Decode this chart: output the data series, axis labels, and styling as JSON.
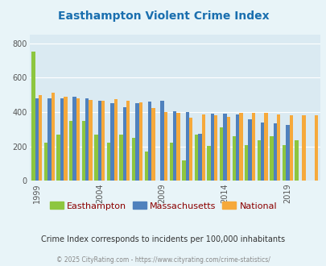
{
  "title": "Easthampton Violent Crime Index",
  "subtitle": "Crime Index corresponds to incidents per 100,000 inhabitants",
  "footer": "© 2025 CityRating.com - https://www.cityrating.com/crime-statistics/",
  "years": [
    1999,
    2000,
    2001,
    2002,
    2003,
    2004,
    2005,
    2006,
    2007,
    2008,
    2009,
    2010,
    2011,
    2012,
    2013,
    2014,
    2015,
    2016,
    2017,
    2018,
    2019,
    2020,
    2021
  ],
  "easthampton": [
    750,
    220,
    270,
    350,
    350,
    270,
    220,
    270,
    250,
    170,
    0,
    220,
    120,
    270,
    205,
    310,
    260,
    210,
    235,
    260,
    210,
    235,
    0
  ],
  "massachusetts": [
    480,
    480,
    480,
    490,
    480,
    465,
    450,
    430,
    450,
    460,
    465,
    405,
    400,
    275,
    390,
    390,
    385,
    360,
    340,
    335,
    325,
    0,
    0
  ],
  "national": [
    500,
    510,
    490,
    480,
    470,
    465,
    475,
    465,
    455,
    425,
    400,
    395,
    365,
    385,
    380,
    370,
    395,
    395,
    395,
    385,
    380,
    380,
    380
  ],
  "bar_colors": {
    "easthampton": "#8dc63f",
    "massachusetts": "#4f81bd",
    "national": "#f6a93b"
  },
  "background_color": "#e8f4f8",
  "plot_bg_color": "#daeaf2",
  "title_color": "#1a6faf",
  "legend_label_color": "#8b0000",
  "ylim": [
    0,
    850
  ],
  "yticks": [
    0,
    200,
    400,
    600,
    800
  ],
  "grid_color": "#ffffff",
  "show_years": [
    1999,
    2004,
    2009,
    2014,
    2019
  ]
}
